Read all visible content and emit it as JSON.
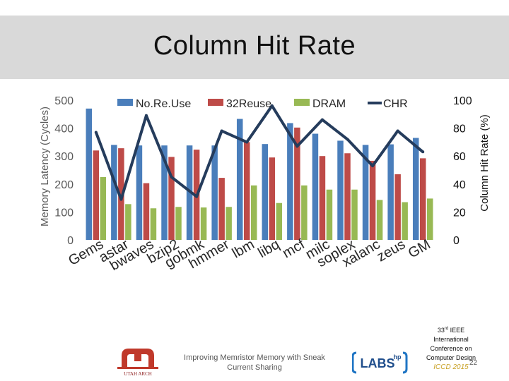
{
  "slide": {
    "title": "Column Hit Rate",
    "caption": "Improving Memristor Memory with Sneak Current Sharing",
    "conference_line1": "33",
    "conference_sup": "rd",
    "conference_line1_rest": " IEEE",
    "conference_line2": "International",
    "conference_line3": "Conference on",
    "conference_line4": "Computer Design",
    "conference_name": "ICCD 2015",
    "slide_number": "22",
    "logo_left_text": "UTAH ARCH",
    "logo_right_text": "LABS",
    "logo_right_sup": "hp"
  },
  "chart_data": {
    "type": "bar",
    "title": "",
    "ylabel": "Memory Latency (Cycles)",
    "y2label": "Column Hit Rate (%)",
    "ylim": [
      0,
      500
    ],
    "yticks": [
      0,
      100,
      200,
      300,
      400,
      500
    ],
    "y2lim": [
      0,
      100
    ],
    "y2ticks": [
      0,
      20,
      40,
      60,
      80,
      100
    ],
    "categories": [
      "Gems",
      "astar",
      "bwaves",
      "bzip2",
      "gobmk",
      "hmmer",
      "lbm",
      "libq",
      "mcf",
      "milc",
      "soplex",
      "xalanc",
      "zeus",
      "GM"
    ],
    "series": [
      {
        "name": "No.Re.Use",
        "color": "#4a7ebb",
        "values": [
          470,
          340,
          338,
          338,
          338,
          338,
          433,
          343,
          418,
          380,
          355,
          340,
          342,
          365
        ]
      },
      {
        "name": "32Reuse",
        "color": "#be4b48",
        "values": [
          320,
          328,
          203,
          297,
          323,
          222,
          350,
          295,
          402,
          300,
          310,
          283,
          235,
          292
        ]
      },
      {
        "name": "DRAM",
        "color": "#98b954",
        "values": [
          225,
          128,
          113,
          118,
          116,
          118,
          195,
          132,
          195,
          180,
          180,
          143,
          135,
          148
        ]
      },
      {
        "name": "CHR",
        "type": "line",
        "axis": "secondary",
        "color": "#253c5c",
        "values": [
          77,
          29,
          89,
          45,
          31,
          78,
          70,
          96,
          67,
          86,
          72,
          53,
          78,
          63
        ]
      }
    ],
    "legend": "top"
  }
}
